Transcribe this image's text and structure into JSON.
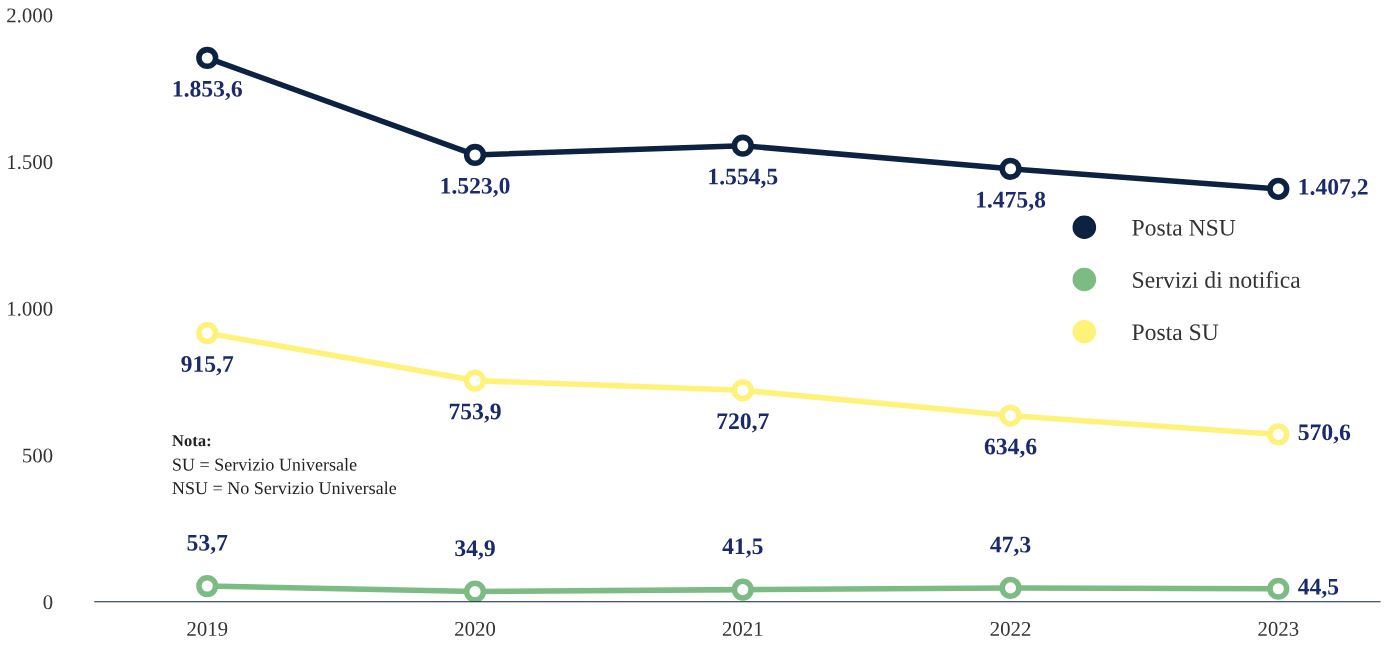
{
  "chart_data": {
    "type": "line",
    "categories": [
      "2019",
      "2020",
      "2021",
      "2022",
      "2023"
    ],
    "series": [
      {
        "name": "Posta NSU",
        "color": "#0d2240",
        "values": [
          1853.6,
          1523.0,
          1554.5,
          1475.8,
          1407.2
        ],
        "value_labels": [
          "1.853,6",
          "1.523,0",
          "1.554,5",
          "1.475,8",
          "1.407,2"
        ]
      },
      {
        "name": "Servizi di notifica",
        "color": "#7dbb84",
        "values": [
          53.7,
          34.9,
          41.5,
          47.3,
          44.5
        ],
        "value_labels": [
          "53,7",
          "34,9",
          "41,5",
          "47,3",
          "44,5"
        ]
      },
      {
        "name": "Posta SU",
        "color": "#fff27a",
        "values": [
          915.7,
          753.9,
          720.7,
          634.6,
          570.6
        ],
        "value_labels": [
          "915,7",
          "753,9",
          "720,7",
          "634,6",
          "570,6"
        ]
      }
    ],
    "ylim": [
      0,
      2000
    ],
    "yticks": [
      {
        "value": 0,
        "label": "0"
      },
      {
        "value": 500,
        "label": "500"
      },
      {
        "value": 1000,
        "label": "1.000"
      },
      {
        "value": 1500,
        "label": "1.500"
      },
      {
        "value": 2000,
        "label": "2.000"
      }
    ],
    "annotations": [
      "Nota:",
      "SU = Servizio Universale",
      "NSU = No Servizio Universale"
    ],
    "legend": "right",
    "marker": "circle",
    "line_style": "solid",
    "grid": false
  }
}
